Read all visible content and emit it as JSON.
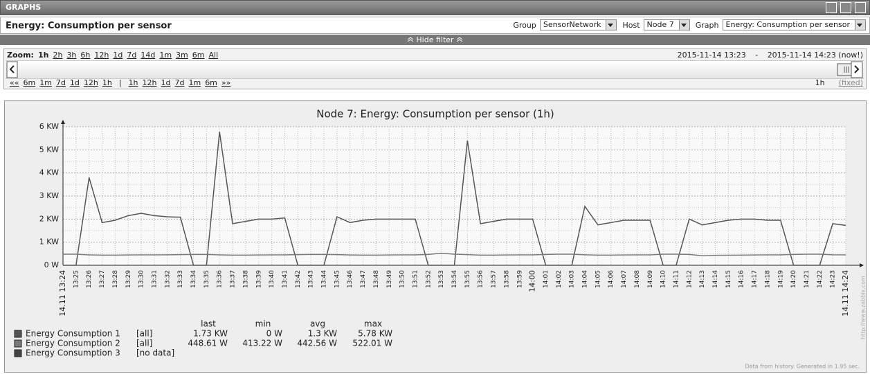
{
  "header": {
    "title": "GRAPHS"
  },
  "titlebar": {
    "title": "Energy: Consumption per sensor",
    "filters": [
      {
        "label": "Group",
        "value": "SensorNetwork"
      },
      {
        "label": "Host",
        "value": "Node 7"
      },
      {
        "label": "Graph",
        "value": "Energy: Consumption per sensor"
      }
    ]
  },
  "hide_filter": "Hide filter",
  "zoom": {
    "label": "Zoom:",
    "options": [
      "1h",
      "2h",
      "3h",
      "6h",
      "12h",
      "1d",
      "7d",
      "14d",
      "1m",
      "3m",
      "6m",
      "All"
    ],
    "from": "2015-11-14 13:23",
    "separator": "-",
    "to": "2015-11-14 14:23 (now!)",
    "back": [
      "««",
      "6m",
      "1m",
      "7d",
      "1d",
      "12h",
      "1h"
    ],
    "divider": "|",
    "forward": [
      "1h",
      "12h",
      "1d",
      "7d",
      "1m",
      "6m",
      "»»"
    ],
    "period": "1h",
    "mode": "(fixed)"
  },
  "chart_data": {
    "type": "line",
    "title": "Node 7: Energy: Consumption per sensor (1h)",
    "x": [
      "14.11 13:24",
      "13:25",
      "13:26",
      "13:27",
      "13:28",
      "13:29",
      "13:30",
      "13:31",
      "13:32",
      "13:33",
      "13:34",
      "13:35",
      "13:36",
      "13:37",
      "13:38",
      "13:39",
      "13:40",
      "13:41",
      "13:42",
      "13:43",
      "13:44",
      "13:45",
      "13:46",
      "13:47",
      "13:48",
      "13:49",
      "13:50",
      "13:51",
      "13:52",
      "13:53",
      "13:54",
      "13:55",
      "13:56",
      "13:57",
      "13:58",
      "13:59",
      "14:00",
      "14:01",
      "14:02",
      "14:03",
      "14:04",
      "14:05",
      "14:06",
      "14:07",
      "14:08",
      "14:09",
      "14:10",
      "14:11",
      "14:12",
      "14:13",
      "14:14",
      "14:15",
      "14:16",
      "14:17",
      "14:18",
      "14:19",
      "14:20",
      "14:21",
      "14:22",
      "14:23",
      "14.11 14:24"
    ],
    "ylim": [
      0,
      6000
    ],
    "yticks": [
      {
        "value": 0,
        "label": "0 W"
      },
      {
        "value": 1000,
        "label": "1 KW"
      },
      {
        "value": 2000,
        "label": "2 KW"
      },
      {
        "value": 3000,
        "label": "3 KW"
      },
      {
        "value": 4000,
        "label": "4 KW"
      },
      {
        "value": 5000,
        "label": "5 KW"
      },
      {
        "value": 6000,
        "label": "6 KW"
      }
    ],
    "grid": true,
    "legend_columns": [
      "last",
      "min",
      "avg",
      "max"
    ],
    "series": [
      {
        "name": "Energy Consumption 1",
        "color": "#555555",
        "scope": "[all]",
        "stats": [
          "1.73 KW",
          "0 W",
          "1.3 KW",
          "5.78 KW"
        ],
        "values": [
          0,
          0,
          3800,
          1850,
          1950,
          2150,
          2250,
          2150,
          2100,
          2080,
          0,
          0,
          5780,
          1800,
          1900,
          2000,
          2000,
          2050,
          0,
          0,
          0,
          2100,
          1850,
          1950,
          2000,
          2000,
          2000,
          2000,
          0,
          0,
          0,
          5400,
          1800,
          1900,
          2000,
          2000,
          2000,
          0,
          0,
          0,
          2550,
          1750,
          1850,
          1950,
          1950,
          1950,
          0,
          0,
          2000,
          1750,
          1850,
          1950,
          2000,
          2000,
          1950,
          1950,
          0,
          0,
          0,
          1800,
          1730
        ]
      },
      {
        "name": "Energy Consumption 2",
        "color": "#7a7a7a",
        "scope": "[all]",
        "stats": [
          "448.61 W",
          "413.22 W",
          "442.56 W",
          "522.01 W"
        ],
        "values": [
          480,
          480,
          450,
          440,
          440,
          445,
          450,
          450,
          455,
          460,
          470,
          470,
          450,
          440,
          440,
          445,
          450,
          450,
          460,
          470,
          470,
          460,
          445,
          440,
          440,
          445,
          450,
          450,
          470,
          522,
          480,
          460,
          440,
          440,
          445,
          450,
          450,
          470,
          480,
          480,
          455,
          440,
          440,
          445,
          450,
          450,
          480,
          480,
          470,
          413,
          430,
          435,
          440,
          445,
          450,
          450,
          470,
          480,
          480,
          455,
          448.61
        ]
      },
      {
        "name": "Energy Consumption 3",
        "color": "#444444",
        "scope": "[no data]",
        "stats": []
      }
    ],
    "footer": "Data from history. Generated in 1.95 sec.",
    "watermark": "http://www.zabbix.com"
  }
}
